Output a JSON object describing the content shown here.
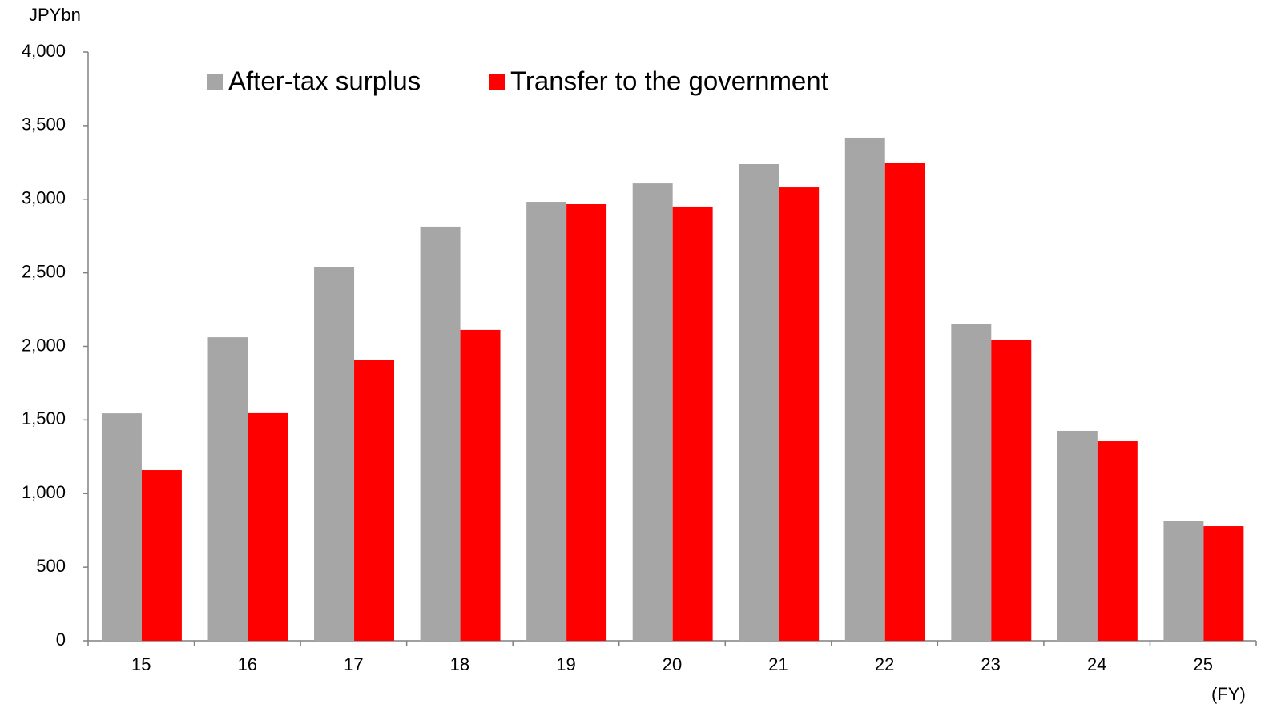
{
  "chart_data": {
    "type": "bar",
    "y_unit_label": "JPYbn",
    "x_label": "(FY)",
    "categories": [
      "15",
      "16",
      "17",
      "18",
      "19",
      "20",
      "21",
      "22",
      "23",
      "24",
      "25"
    ],
    "series": [
      {
        "name": "After-tax surplus",
        "color": "#a6a6a6",
        "values": [
          1545,
          2062,
          2536,
          2814,
          2982,
          3107,
          3238,
          3418,
          2150,
          1426,
          816
        ]
      },
      {
        "name": "Transfer to the government",
        "color": "#ff0000",
        "values": [
          1159,
          1546,
          1905,
          2112,
          2966,
          2950,
          3080,
          3249,
          2041,
          1355,
          778
        ]
      }
    ],
    "ylim": [
      0,
      4000
    ],
    "yticks": [
      0,
      500,
      {
        "value": 1000,
        "label": "1,000"
      },
      {
        "value": 1500,
        "label": "1,500"
      },
      {
        "value": 2000,
        "label": "2,000"
      },
      {
        "value": 2500,
        "label": "2,500"
      },
      {
        "value": 3000,
        "label": "3,000"
      },
      {
        "value": 3500,
        "label": "3,500"
      },
      {
        "value": 4000,
        "label": "4,000"
      }
    ],
    "grid": false,
    "legend": "top"
  }
}
